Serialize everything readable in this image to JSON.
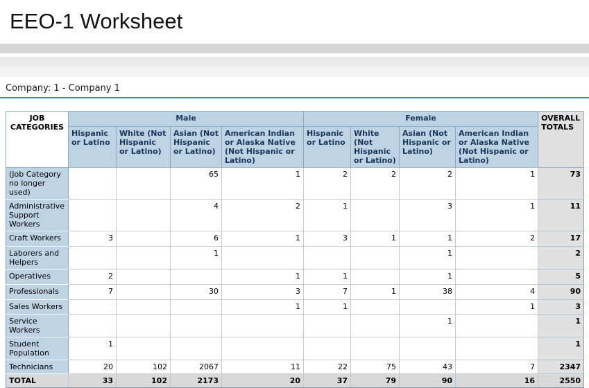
{
  "page": {
    "title": "EEO-1 Worksheet",
    "company_label": "Company: 1 - Company 1"
  },
  "colors": {
    "accent_underline": "#2191c0",
    "header_fill": "#bed3e3",
    "header_text": "#17375d",
    "overall_totals_fill": "#e0e0e0",
    "total_row_fill": "#d9d9d9"
  },
  "table": {
    "job_categories_header": "JOB CATEGORIES",
    "overall_totals_header": "OVERALL TOTALS",
    "groups": [
      {
        "label": "Male",
        "columns": [
          "Hispanic or Latino",
          "White (Not Hispanic or Latino)",
          "Asian (Not Hispanic or Latino)",
          "American Indian or Alaska Native (Not Hispanic or Latino)"
        ]
      },
      {
        "label": "Female",
        "columns": [
          "Hispanic or Latino",
          "White (Not Hispanic or Latino)",
          "Asian (Not Hispanic or Latino)",
          "American Indian or Alaska Native (Not Hispanic or Latino)"
        ]
      }
    ],
    "rows": [
      {
        "label": "(Job Category no longer used)",
        "male": [
          "",
          "",
          "65",
          "1"
        ],
        "female": [
          "2",
          "2",
          "2",
          "1"
        ],
        "total": "73"
      },
      {
        "label": "Administrative Support Workers",
        "male": [
          "",
          "",
          "4",
          "2"
        ],
        "female": [
          "1",
          "",
          "3",
          "1"
        ],
        "total": "11"
      },
      {
        "label": "Craft Workers",
        "male": [
          "3",
          "",
          "6",
          "1"
        ],
        "female": [
          "3",
          "1",
          "1",
          "2"
        ],
        "total": "17"
      },
      {
        "label": "Laborers and Helpers",
        "male": [
          "",
          "",
          "1",
          ""
        ],
        "female": [
          "",
          "",
          "1",
          ""
        ],
        "total": "2"
      },
      {
        "label": "Operatives",
        "male": [
          "2",
          "",
          "",
          "1"
        ],
        "female": [
          "1",
          "",
          "1",
          ""
        ],
        "total": "5"
      },
      {
        "label": "Professionals",
        "male": [
          "7",
          "",
          "30",
          "3"
        ],
        "female": [
          "7",
          "1",
          "38",
          "4"
        ],
        "total": "90"
      },
      {
        "label": "Sales Workers",
        "male": [
          "",
          "",
          "",
          "1"
        ],
        "female": [
          "1",
          "",
          "",
          "1"
        ],
        "total": "3"
      },
      {
        "label": "Service Workers",
        "male": [
          "",
          "",
          "",
          ""
        ],
        "female": [
          "",
          "",
          "1",
          ""
        ],
        "total": "1"
      },
      {
        "label": "Student Population",
        "male": [
          "1",
          "",
          "",
          ""
        ],
        "female": [
          "",
          "",
          "",
          ""
        ],
        "total": "1"
      },
      {
        "label": "Technicians",
        "male": [
          "20",
          "102",
          "2067",
          "11"
        ],
        "female": [
          "22",
          "75",
          "43",
          "7"
        ],
        "total": "2347"
      }
    ],
    "total_row": {
      "label": "TOTAL",
      "male": [
        "33",
        "102",
        "2173",
        "20"
      ],
      "female": [
        "37",
        "79",
        "90",
        "16"
      ],
      "total": "2550"
    }
  }
}
